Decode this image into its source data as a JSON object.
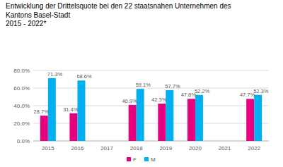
{
  "chart_data": {
    "type": "bar",
    "title": "Entwicklung der Drittelsquote bei den 22 staatsnahen Unternehmen des\nKantons Basel-Stadt\n2015 - 2022*",
    "categories": [
      "2015",
      "2016",
      "2017",
      "2018",
      "2019",
      "2020",
      "2021",
      "2022"
    ],
    "series": [
      {
        "name": "F",
        "color": "#e6007e",
        "values": [
          28.7,
          31.4,
          null,
          40.9,
          42.3,
          47.8,
          null,
          47.7
        ],
        "value_labels": [
          "28.7%",
          "31.4%",
          null,
          "40.9%",
          "42.3%",
          "47.8%",
          null,
          "47.7%"
        ]
      },
      {
        "name": "M",
        "color": "#00b0f0",
        "values": [
          71.3,
          68.6,
          null,
          59.1,
          57.7,
          52.2,
          null,
          52.3
        ],
        "value_labels": [
          "71.3%",
          "68.6%",
          null,
          "59.1%",
          "57.7%",
          "52.2%",
          null,
          "52.3%"
        ]
      }
    ],
    "ylim": [
      0,
      80
    ],
    "yticks": [
      {
        "value": 0,
        "label": "0.0%"
      },
      {
        "value": 20,
        "label": "20.0%"
      },
      {
        "value": 40,
        "label": "40.0%"
      },
      {
        "value": 60,
        "label": "60.0%"
      },
      {
        "value": 80,
        "label": "80.0%"
      }
    ],
    "grid": true,
    "legend": "bottom",
    "data_labels": true
  }
}
